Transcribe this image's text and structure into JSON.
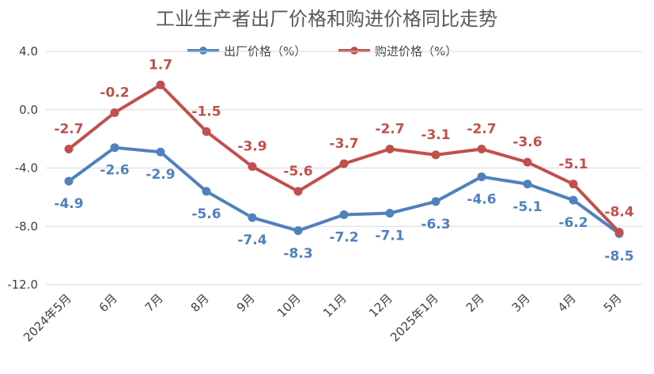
{
  "chart_data": {
    "type": "line",
    "title": "工业生产者出厂价格和购进价格同比走势",
    "xlabel": "",
    "ylabel": "",
    "categories": [
      "2024年5月",
      "6月",
      "7月",
      "8月",
      "9月",
      "10月",
      "11月",
      "12月",
      "2025年1月",
      "2月",
      "3月",
      "4月",
      "5月"
    ],
    "ylim": [
      -12.0,
      4.0
    ],
    "yticks": [
      4.0,
      0.0,
      -4.0,
      -8.0,
      -12.0
    ],
    "ytick_labels": [
      "4.0",
      "0.0",
      "-4.0",
      "-8.0",
      "-12.0"
    ],
    "grid": true,
    "legend_position": "top",
    "series": [
      {
        "name": "出厂价格（%）",
        "color": "#4f81bd",
        "values": [
          -4.9,
          -2.6,
          -2.9,
          -5.6,
          -7.4,
          -8.3,
          -7.2,
          -7.1,
          -6.3,
          -4.6,
          -5.1,
          -6.2,
          -8.5
        ],
        "labels": [
          "-4.9",
          "-2.6",
          "-2.9",
          "-5.6",
          "-7.4",
          "-8.3",
          "-7.2",
          "-7.1",
          "-6.3",
          "-4.6",
          "-5.1",
          "-6.2",
          "-8.5"
        ]
      },
      {
        "name": "购进价格（%）",
        "color": "#c0504d",
        "values": [
          -2.7,
          -0.2,
          1.7,
          -1.5,
          -3.9,
          -5.6,
          -3.7,
          -2.7,
          -3.1,
          -2.7,
          -3.6,
          -5.1,
          -8.4
        ],
        "labels": [
          "-2.7",
          "-0.2",
          "1.7",
          "-1.5",
          "-3.9",
          "-5.6",
          "-3.7",
          "-2.7",
          "-3.1",
          "-2.7",
          "-3.6",
          "-5.1",
          "-8.4"
        ]
      }
    ]
  }
}
